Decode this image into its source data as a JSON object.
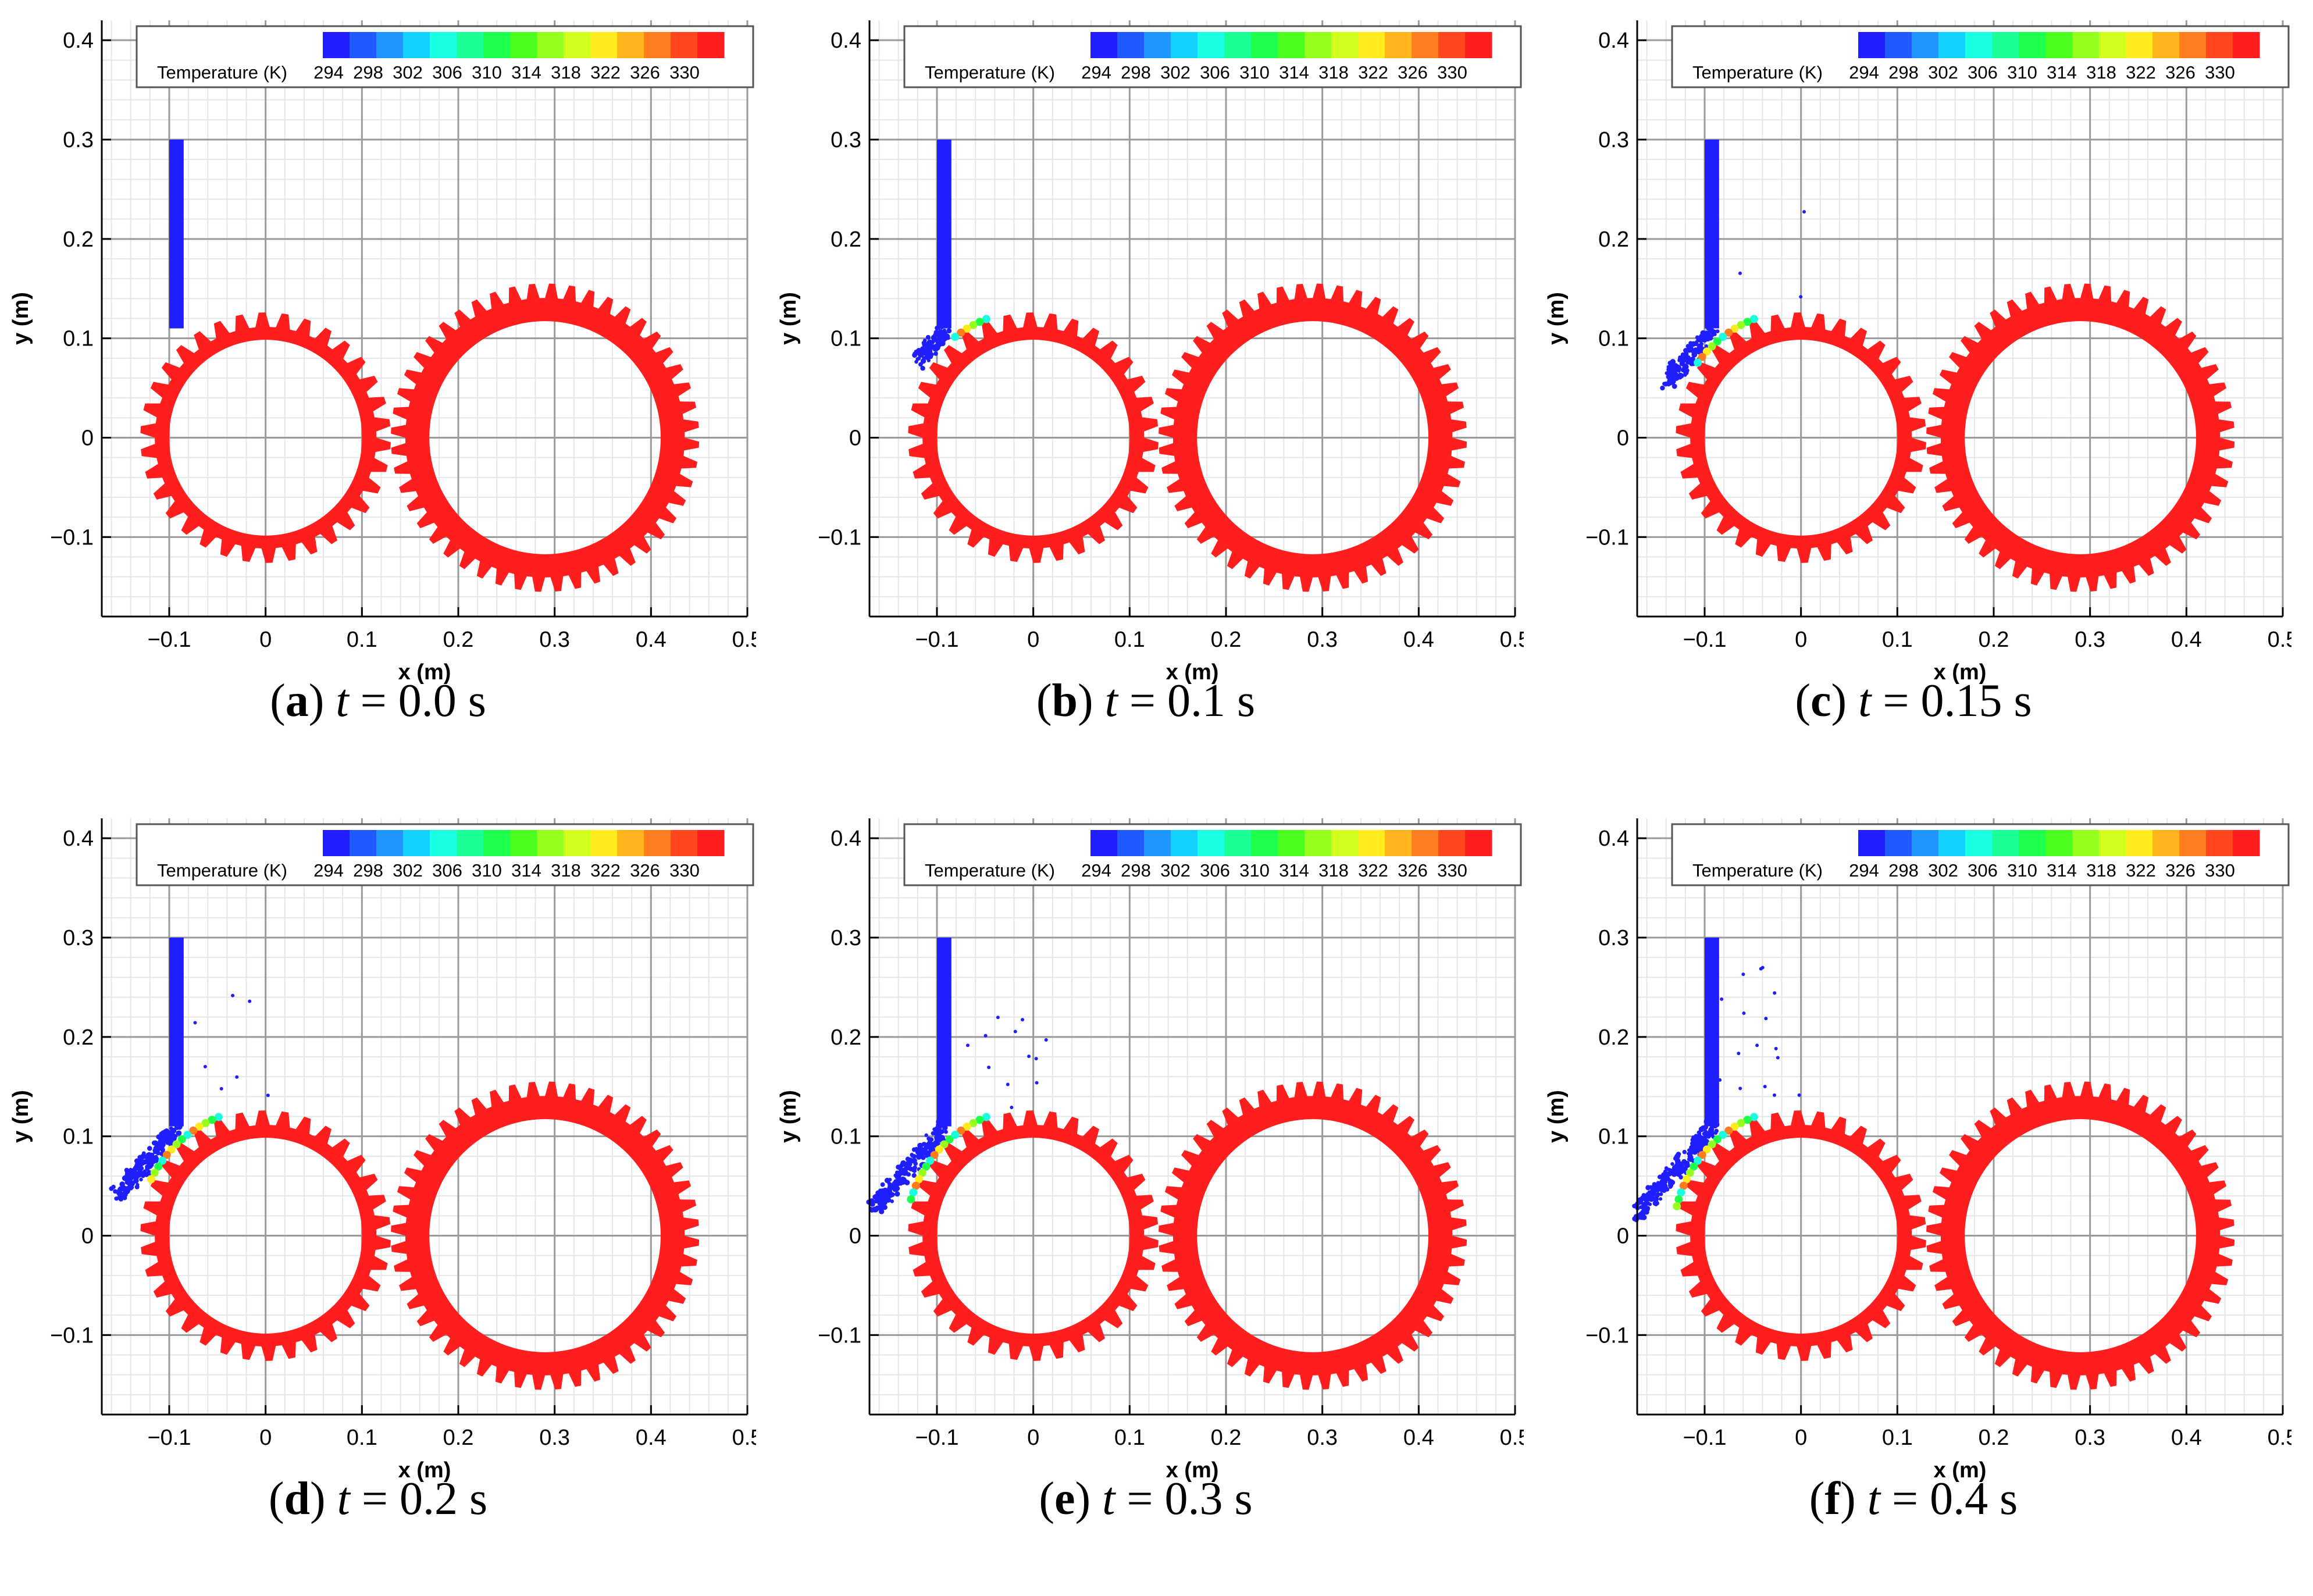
{
  "figure": {
    "panels": [
      {
        "label": "a",
        "t_value": "0.0",
        "jet_spread": 0.0,
        "droplets": 0
      },
      {
        "label": "b",
        "t_value": "0.1",
        "jet_spread": 0.35,
        "droplets": 0
      },
      {
        "label": "c",
        "t_value": "0.15",
        "jet_spread": 0.6,
        "droplets": 3
      },
      {
        "label": "d",
        "t_value": "0.2",
        "jet_spread": 0.8,
        "droplets": 7
      },
      {
        "label": "e",
        "t_value": "0.3",
        "jet_spread": 0.95,
        "droplets": 12
      },
      {
        "label": "f",
        "t_value": "0.4",
        "jet_spread": 1.0,
        "droplets": 16
      }
    ],
    "caption_t": "t",
    "caption_eq": "=",
    "caption_unit": "s"
  },
  "chart_data": {
    "type": "contour",
    "xlabel": "x (m)",
    "ylabel": "y (m)",
    "xlim": [
      -0.17,
      0.5
    ],
    "ylim": [
      -0.18,
      0.42
    ],
    "x_ticks": [
      "-0.1",
      "0",
      "0.1",
      "0.2",
      "0.3",
      "0.4",
      "0.5"
    ],
    "x_tick_values": [
      -0.1,
      0,
      0.1,
      0.2,
      0.3,
      0.4,
      0.5
    ],
    "y_ticks": [
      "-0.1",
      "0",
      "0.1",
      "0.2",
      "0.3",
      "0.4"
    ],
    "y_tick_values": [
      -0.1,
      0,
      0.1,
      0.2,
      0.3,
      0.4
    ],
    "legend_title": "Temperature (K)",
    "legend_ticks": [
      "294",
      "298",
      "302",
      "306",
      "310",
      "314",
      "318",
      "322",
      "326",
      "330"
    ],
    "legend_colors": [
      "#1e1eff",
      "#1e5aff",
      "#1e96ff",
      "#14d2ff",
      "#19ffe1",
      "#19ff96",
      "#1eff4b",
      "#4bff1e",
      "#96ff1e",
      "#d2ff1e",
      "#ffeb1e",
      "#ffb41e",
      "#ff7d1e",
      "#ff461e",
      "#ff1e1e"
    ],
    "gear_color": "#ff1e1e",
    "oil_color": "#1e1eff",
    "pinion_gear": {
      "center": [
        0,
        0
      ],
      "inner_radius": 0.1,
      "root_radius": 0.115,
      "tip_radius": 0.13,
      "teeth": 34
    },
    "wheel_gear": {
      "center": [
        0.29,
        0
      ],
      "inner_radius": 0.12,
      "root_radius": 0.145,
      "tip_radius": 0.16,
      "teeth": 48
    },
    "nozzle": {
      "x": [
        -0.1,
        -0.085
      ],
      "y": [
        0.11,
        0.3
      ]
    }
  }
}
